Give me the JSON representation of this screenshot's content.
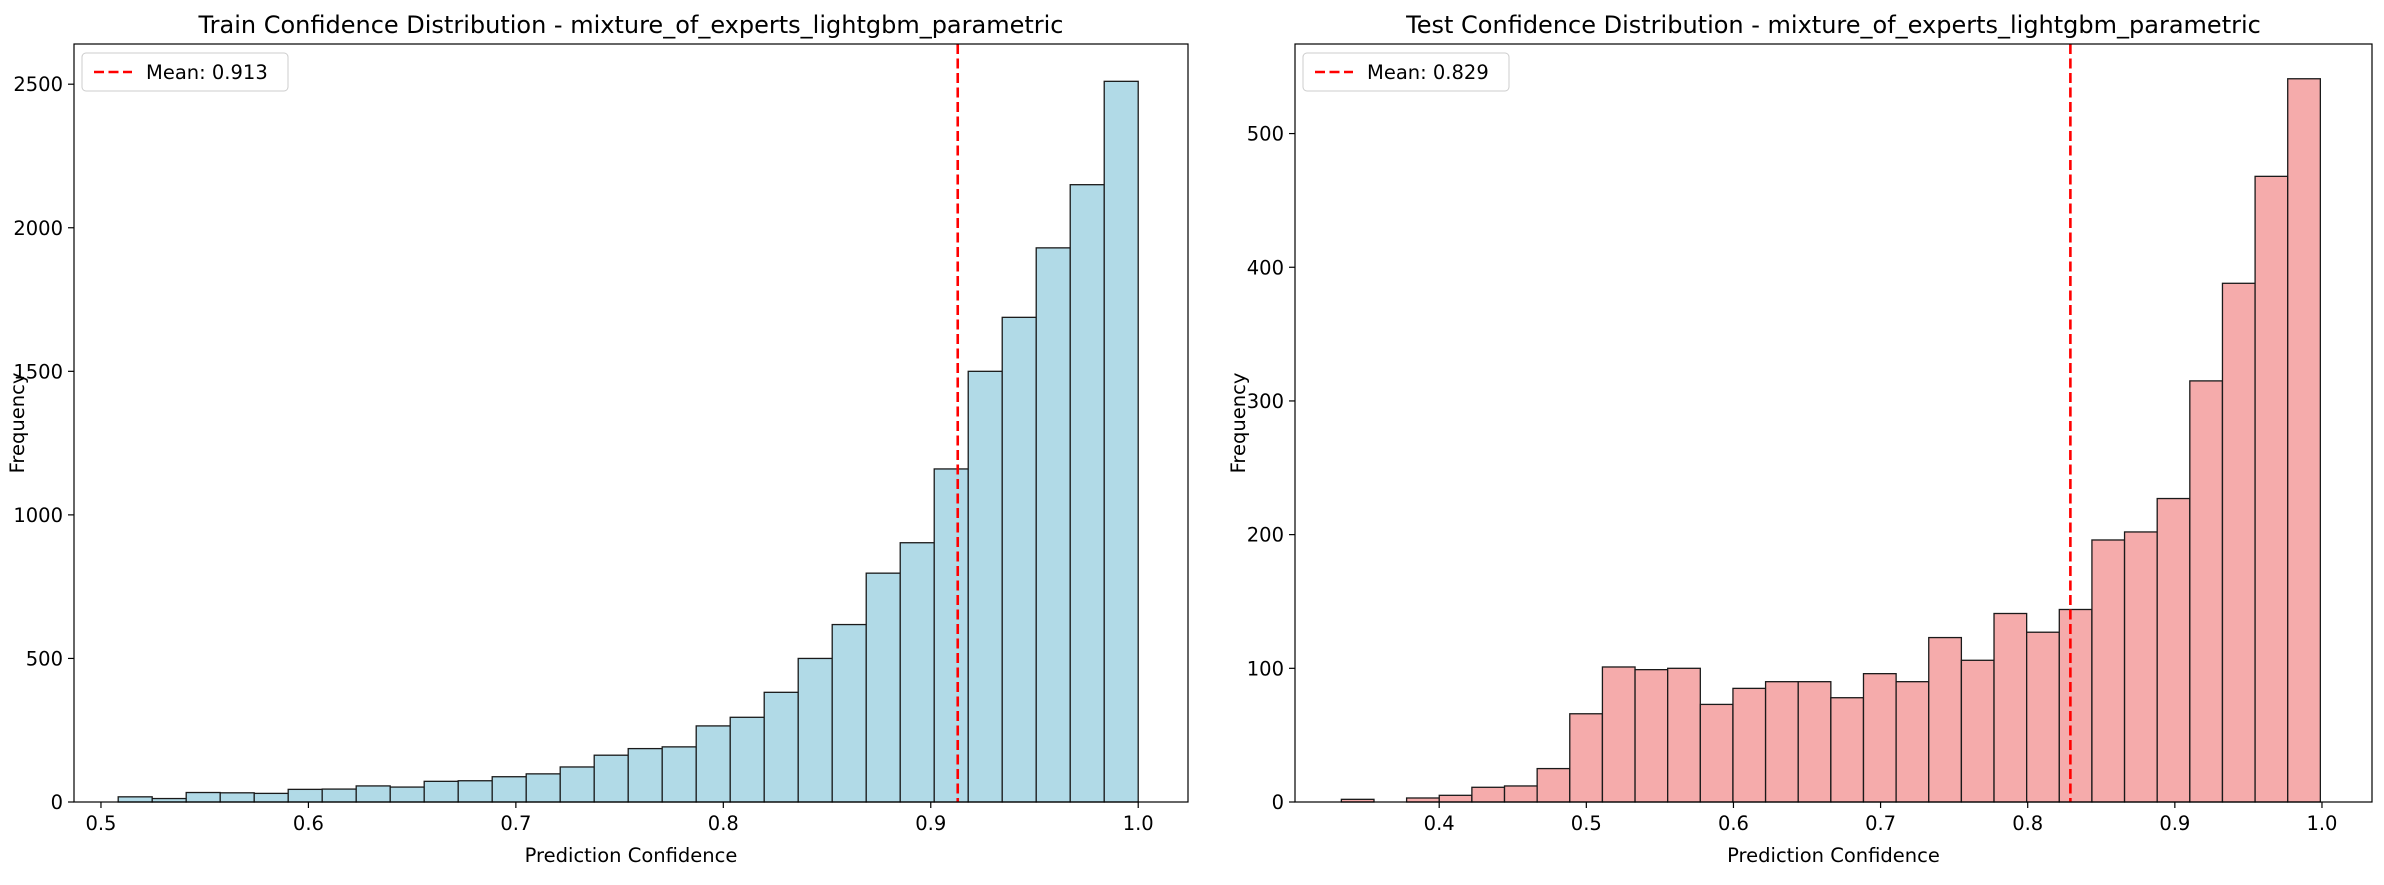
{
  "chart_data": [
    {
      "type": "bar",
      "title": "Train Confidence Distribution - mixture_of_experts_lightgbm_parametric",
      "xlabel": "Prediction Confidence",
      "ylabel": "Frequency",
      "xlim": [
        0.487,
        1.024
      ],
      "ylim": [
        0,
        2640
      ],
      "x_ticks": [
        0.5,
        0.6,
        0.7,
        0.8,
        0.9,
        1.0
      ],
      "x_tick_labels": [
        "0.5",
        "0.6",
        "0.7",
        "0.8",
        "0.9",
        "1.0"
      ],
      "y_ticks": [
        0,
        500,
        1000,
        1500,
        2000,
        2500
      ],
      "y_tick_labels": [
        "0",
        "500",
        "1000",
        "1500",
        "2000",
        "2500"
      ],
      "bin_start": 0.5083,
      "bin_width": 0.01639,
      "values": [
        18,
        12,
        33,
        32,
        30,
        44,
        45,
        56,
        52,
        72,
        74,
        88,
        98,
        122,
        163,
        186,
        192,
        265,
        295,
        382,
        500,
        618,
        797,
        903,
        1160,
        1500,
        1688,
        1930,
        2150,
        2510
      ],
      "bar_color": "#add8e6",
      "mean_value": 0.913,
      "mean_color": "#ff0000",
      "legend": {
        "label": "Mean: 0.913",
        "position": "upper-left"
      }
    },
    {
      "type": "bar",
      "title": "Test Confidence Distribution - mixture_of_experts_lightgbm_parametric",
      "xlabel": "Prediction Confidence",
      "ylabel": "Frequency",
      "xlim": [
        0.302,
        1.034
      ],
      "ylim": [
        0,
        567
      ],
      "x_ticks": [
        0.4,
        0.5,
        0.6,
        0.7,
        0.8,
        0.9,
        1.0
      ],
      "x_tick_labels": [
        "0.4",
        "0.5",
        "0.6",
        "0.7",
        "0.8",
        "0.9",
        "1.0"
      ],
      "y_ticks": [
        0,
        100,
        200,
        300,
        400,
        500
      ],
      "y_tick_labels": [
        "0",
        "100",
        "200",
        "300",
        "400",
        "500"
      ],
      "bin_start": 0.3335,
      "bin_width": 0.02218,
      "values": [
        2,
        0,
        3,
        5,
        11,
        12,
        25,
        66,
        101,
        99,
        100,
        73,
        85,
        90,
        90,
        78,
        96,
        90,
        123,
        106,
        141,
        127,
        144,
        196,
        202,
        227,
        315,
        388,
        468,
        541
      ],
      "bar_color": "#f4a6a6",
      "mean_value": 0.829,
      "mean_color": "#ff0000",
      "legend": {
        "label": "Mean: 0.829",
        "position": "upper-left"
      }
    }
  ]
}
